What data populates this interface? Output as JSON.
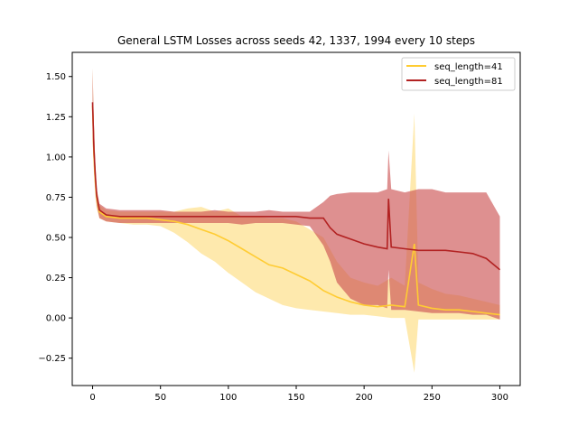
{
  "chart_data": {
    "type": "line",
    "title": "General LSTM Losses across seeds 42, 1337, 1994 every 10 steps",
    "xlabel": "",
    "ylabel": "",
    "xlim": [
      -15,
      315
    ],
    "ylim": [
      -0.42,
      1.65
    ],
    "x_ticks": [
      0,
      50,
      100,
      150,
      200,
      250,
      300
    ],
    "y_ticks": [
      -0.25,
      0.0,
      0.25,
      0.5,
      0.75,
      1.0,
      1.25,
      1.5
    ],
    "y_tick_labels": [
      "−0.25",
      "0.00",
      "0.25",
      "0.50",
      "0.75",
      "1.00",
      "1.25",
      "1.50"
    ],
    "grid": false,
    "legend_position": "top-right",
    "series": [
      {
        "name": "seq_length=41",
        "color": "#ffcc33",
        "band_color": "#fde08a",
        "x": [
          0,
          1,
          2,
          3,
          5,
          10,
          20,
          30,
          40,
          50,
          60,
          70,
          80,
          90,
          100,
          110,
          120,
          130,
          140,
          150,
          160,
          170,
          180,
          190,
          200,
          210,
          220,
          230,
          237,
          240,
          250,
          260,
          270,
          280,
          290,
          300
        ],
        "mean": [
          1.32,
          1.02,
          0.85,
          0.75,
          0.66,
          0.63,
          0.62,
          0.62,
          0.62,
          0.61,
          0.6,
          0.58,
          0.55,
          0.52,
          0.48,
          0.43,
          0.38,
          0.33,
          0.31,
          0.27,
          0.23,
          0.17,
          0.13,
          0.1,
          0.08,
          0.07,
          0.08,
          0.07,
          0.46,
          0.08,
          0.06,
          0.05,
          0.05,
          0.04,
          0.03,
          0.02
        ],
        "upper": [
          1.55,
          1.2,
          0.95,
          0.8,
          0.7,
          0.67,
          0.66,
          0.66,
          0.66,
          0.66,
          0.66,
          0.68,
          0.69,
          0.66,
          0.68,
          0.63,
          0.63,
          0.62,
          0.62,
          0.6,
          0.55,
          0.5,
          0.35,
          0.25,
          0.22,
          0.2,
          0.25,
          0.2,
          1.27,
          0.22,
          0.18,
          0.15,
          0.14,
          0.12,
          0.1,
          0.08
        ],
        "lower": [
          1.1,
          0.9,
          0.75,
          0.68,
          0.62,
          0.6,
          0.59,
          0.58,
          0.58,
          0.57,
          0.53,
          0.47,
          0.4,
          0.35,
          0.28,
          0.22,
          0.16,
          0.12,
          0.08,
          0.06,
          0.05,
          0.04,
          0.03,
          0.02,
          0.02,
          0.01,
          0.0,
          0.0,
          -0.34,
          -0.01,
          -0.01,
          -0.01,
          -0.01,
          -0.01,
          -0.01,
          -0.01
        ]
      },
      {
        "name": "seq_length=81",
        "color": "#b22222",
        "band_color": "#cc5555",
        "x": [
          0,
          1,
          2,
          3,
          5,
          10,
          20,
          30,
          40,
          50,
          60,
          70,
          80,
          90,
          100,
          110,
          120,
          130,
          140,
          150,
          160,
          170,
          175,
          180,
          190,
          200,
          210,
          217,
          218,
          220,
          230,
          240,
          250,
          260,
          270,
          280,
          290,
          300
        ],
        "mean": [
          1.34,
          1.05,
          0.88,
          0.76,
          0.67,
          0.64,
          0.63,
          0.63,
          0.63,
          0.63,
          0.63,
          0.63,
          0.63,
          0.63,
          0.63,
          0.63,
          0.63,
          0.63,
          0.63,
          0.63,
          0.62,
          0.62,
          0.56,
          0.52,
          0.49,
          0.46,
          0.44,
          0.43,
          0.74,
          0.44,
          0.43,
          0.42,
          0.42,
          0.42,
          0.41,
          0.4,
          0.37,
          0.3
        ],
        "upper": [
          1.55,
          1.2,
          0.95,
          0.8,
          0.71,
          0.68,
          0.67,
          0.67,
          0.67,
          0.67,
          0.66,
          0.66,
          0.66,
          0.67,
          0.66,
          0.66,
          0.66,
          0.67,
          0.66,
          0.66,
          0.66,
          0.72,
          0.76,
          0.77,
          0.78,
          0.78,
          0.78,
          0.8,
          1.04,
          0.8,
          0.78,
          0.8,
          0.8,
          0.78,
          0.78,
          0.78,
          0.78,
          0.63
        ],
        "lower": [
          1.12,
          0.92,
          0.78,
          0.7,
          0.62,
          0.6,
          0.59,
          0.59,
          0.59,
          0.59,
          0.59,
          0.59,
          0.59,
          0.59,
          0.59,
          0.58,
          0.59,
          0.59,
          0.59,
          0.58,
          0.57,
          0.45,
          0.35,
          0.22,
          0.12,
          0.08,
          0.08,
          0.06,
          0.3,
          0.05,
          0.05,
          0.04,
          0.03,
          0.03,
          0.03,
          0.02,
          0.02,
          -0.01
        ]
      }
    ]
  }
}
